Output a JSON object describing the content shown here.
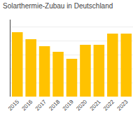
{
  "chart_data": {
    "type": "bar",
    "title": "Solarthermie-Zubau in Deutschland",
    "categories": [
      "2015",
      "2016",
      "2017",
      "2018",
      "2019",
      "2020",
      "2021",
      "2022",
      "2023"
    ],
    "values": [
      92,
      82,
      72,
      64,
      54,
      74,
      74,
      90,
      90
    ],
    "color": "#FFC200",
    "ylim": [
      0,
      110
    ],
    "yticks": [
      0,
      20,
      40,
      60,
      80,
      100
    ],
    "grid": true,
    "tick_labels": "x"
  }
}
